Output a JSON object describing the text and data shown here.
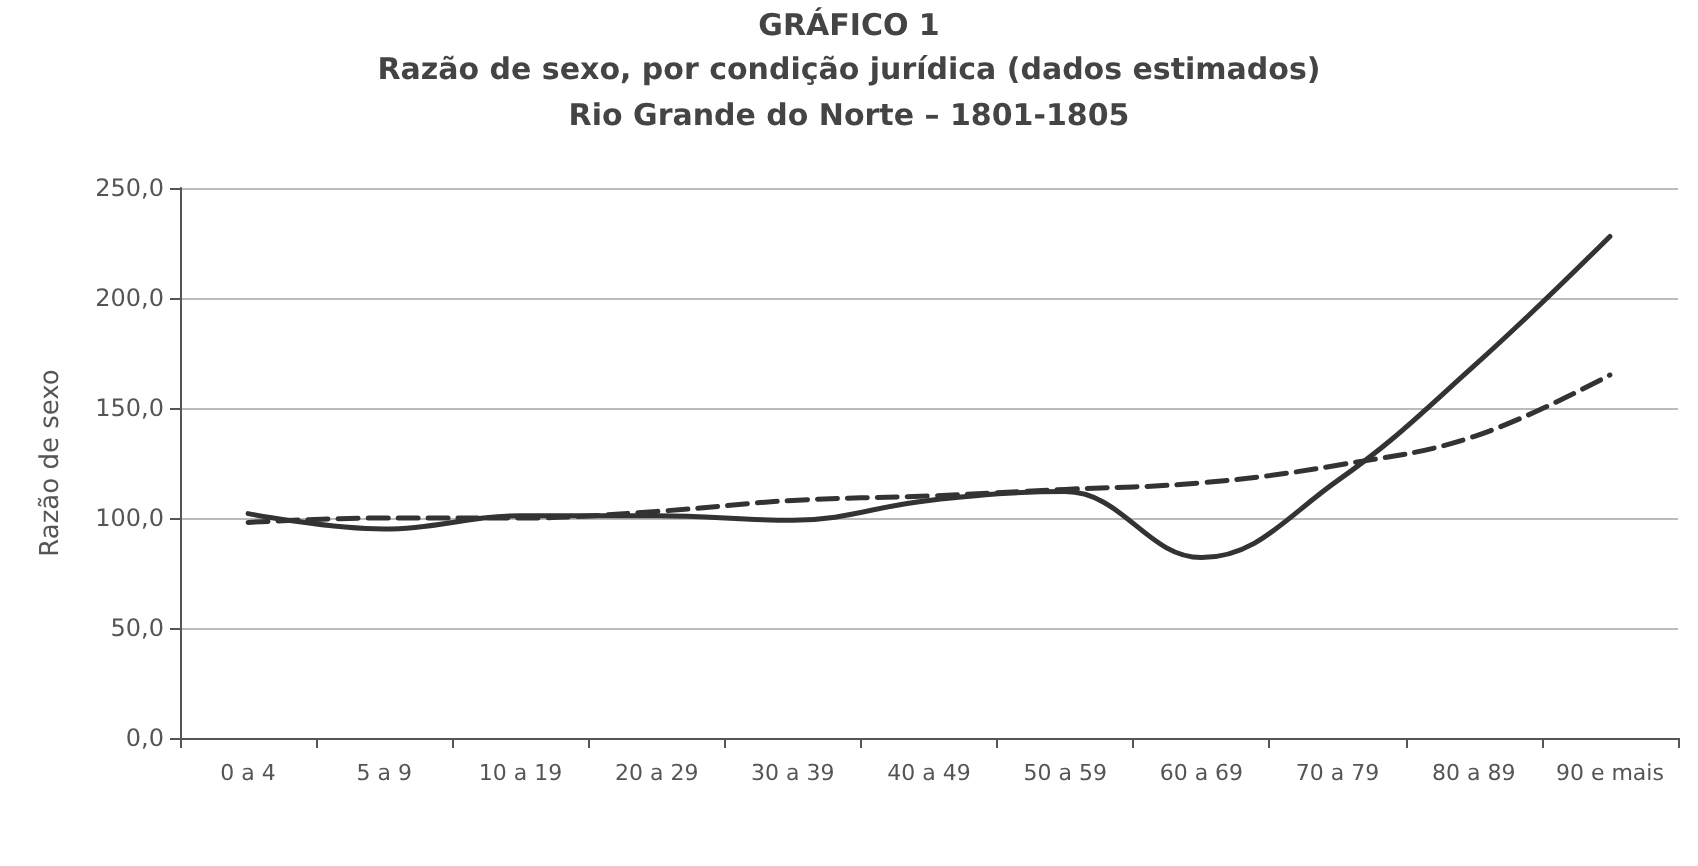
{
  "chart_data": {
    "type": "line",
    "title": "GRÁFICO 1",
    "subtitle": "Razão de sexo, por condição jurídica (dados estimados)\nRio Grande do Norte – 1801-1805",
    "ylabel": "Razão de sexo",
    "categories": [
      "0 a 4",
      "5 a 9",
      "10 a 19",
      "20 a 29",
      "30 a 39",
      "40 a 49",
      "50 a 59",
      "60 a 69",
      "70 a 79",
      "80 a 89",
      "90 e mais"
    ],
    "series": [
      {
        "color": "#333333",
        "line_style": "solid",
        "values": [
          102,
          95,
          101,
          101,
          99,
          108,
          112,
          82,
          117,
          169,
          228
        ]
      },
      {
        "color": "#333333",
        "line_style": "dashed",
        "values": [
          98,
          100,
          100,
          103,
          108,
          110,
          113,
          116,
          124,
          137,
          165
        ]
      }
    ],
    "ylim": [
      0,
      250
    ],
    "yticks": [
      {
        "value": 0,
        "label": "0,0"
      },
      {
        "value": 50,
        "label": "50,0"
      },
      {
        "value": 100,
        "label": "100,0"
      },
      {
        "value": 150,
        "label": "150,0"
      },
      {
        "value": 200,
        "label": "200,0"
      },
      {
        "value": 250,
        "label": "250,0"
      }
    ],
    "grid": "y",
    "marker": "none"
  }
}
